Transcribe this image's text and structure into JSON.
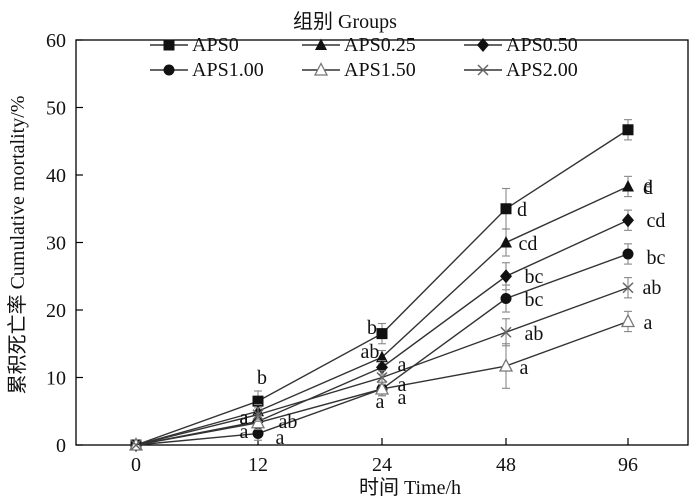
{
  "chart_data": {
    "type": "line",
    "legend_title": "组别 Groups",
    "xlabel": "时间  Time/h",
    "ylabel": "累积死亡率  Cumulative mortality/%",
    "x_tick_labels": [
      "0",
      "12",
      "24",
      "48",
      "96"
    ],
    "y_ticks": [
      0,
      10,
      20,
      30,
      40,
      50,
      60
    ],
    "ylim": [
      0,
      60
    ],
    "grid": false,
    "legend_position": "top",
    "series": [
      {
        "name": "APS0",
        "marker": "square-filled",
        "values": [
          0,
          6.5,
          16.5,
          35,
          46.7
        ],
        "errors": [
          0,
          1.5,
          1.5,
          3,
          1.5
        ],
        "sig": [
          "",
          "b",
          "b",
          "d",
          "e"
        ]
      },
      {
        "name": "APS0.25",
        "marker": "triangle-filled",
        "values": [
          0,
          5,
          13,
          30,
          38.3
        ],
        "errors": [
          0,
          1,
          1,
          2,
          1.5
        ],
        "sig": [
          "",
          "a",
          "ab",
          "cd",
          "d"
        ]
      },
      {
        "name": "APS0.50",
        "marker": "diamond-filled",
        "values": [
          0,
          3.5,
          11.5,
          25,
          33.3
        ],
        "errors": [
          0,
          1,
          1,
          2,
          1.5
        ],
        "sig": [
          "",
          "a",
          "a",
          "bc",
          "cd"
        ]
      },
      {
        "name": "APS1.00",
        "marker": "circle-filled",
        "values": [
          0,
          1.7,
          8.3,
          21.7,
          28.3
        ],
        "errors": [
          0,
          1,
          1,
          2,
          1.5
        ],
        "sig": [
          "",
          "a",
          "a",
          "bc",
          "bc"
        ]
      },
      {
        "name": "APS1.50",
        "marker": "triangle-open",
        "values": [
          0,
          3.3,
          8.3,
          11.7,
          18.3
        ],
        "errors": [
          0,
          1,
          1,
          3.3,
          1.5
        ],
        "sig": [
          "",
          "a",
          "a",
          "a",
          "a"
        ]
      },
      {
        "name": "APS2.00",
        "marker": "x",
        "values": [
          0,
          4.5,
          10,
          16.7,
          23.3
        ],
        "errors": [
          0,
          1,
          1,
          2,
          1.5
        ],
        "sig": [
          "",
          "ab",
          "a",
          "ab",
          "ab"
        ]
      }
    ]
  }
}
